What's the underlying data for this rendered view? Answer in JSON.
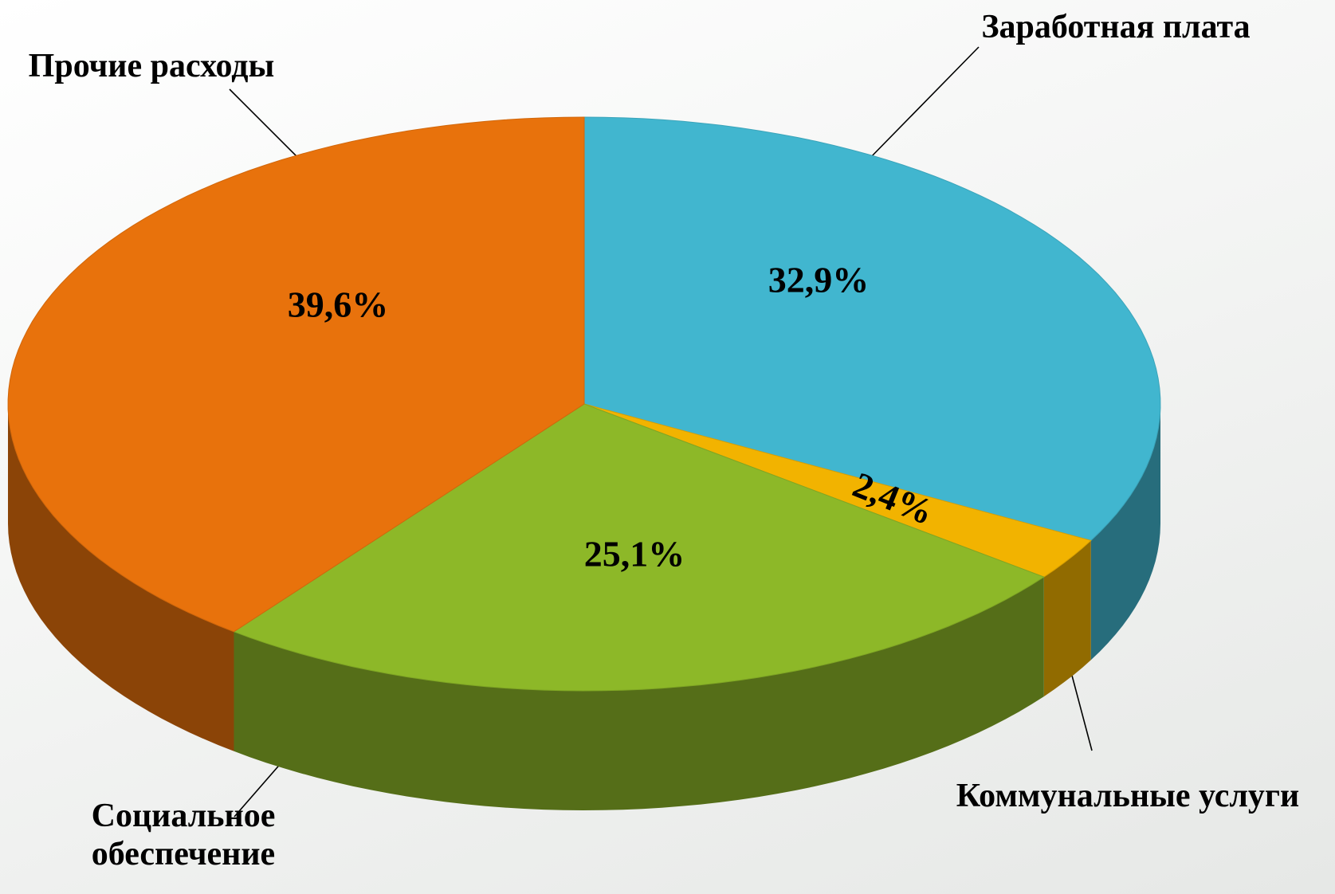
{
  "chart_data": {
    "type": "pie3d",
    "categories": [
      "Заработная плата",
      "Коммунальные услуги",
      "Социальное обеспечение",
      "Прочие расходы"
    ],
    "values": [
      32.9,
      2.4,
      25.1,
      39.6
    ],
    "value_labels": [
      "32,9%",
      "2,4%",
      "25,1%",
      "39,6%"
    ],
    "colors": [
      "#41b6cf",
      "#f2b300",
      "#8db828",
      "#e8720c"
    ]
  }
}
